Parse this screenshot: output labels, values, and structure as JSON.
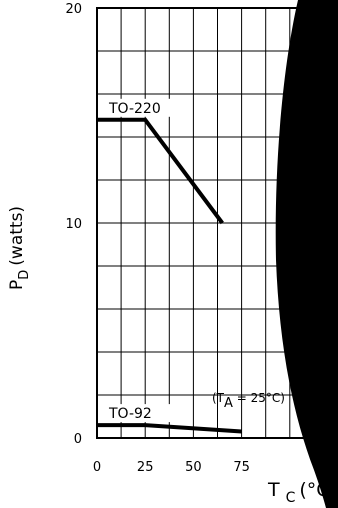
{
  "chart_data": {
    "type": "line",
    "ylabel_main": "P",
    "ylabel_sub": "D",
    "ylabel_unit": "(watts)",
    "xlabel_main": "T",
    "xlabel_sub": "C",
    "xlabel_unit": "(°C",
    "x_ticks": [
      "0",
      "25",
      "50",
      "75"
    ],
    "y_ticks": [
      "0",
      "10",
      "20"
    ],
    "xlim": [
      0,
      125
    ],
    "ylim": [
      0,
      20
    ],
    "grid": true,
    "series": [
      {
        "name": "TO-220",
        "x": [
          0,
          25,
          65
        ],
        "y": [
          14.8,
          14.8,
          10.0
        ]
      },
      {
        "name": "TO-92",
        "x": [
          0,
          25,
          75
        ],
        "y": [
          0.6,
          0.6,
          0.3
        ]
      }
    ],
    "annotation": {
      "main": "(T",
      "sub": "A",
      "rest": " = 25°C)"
    }
  }
}
